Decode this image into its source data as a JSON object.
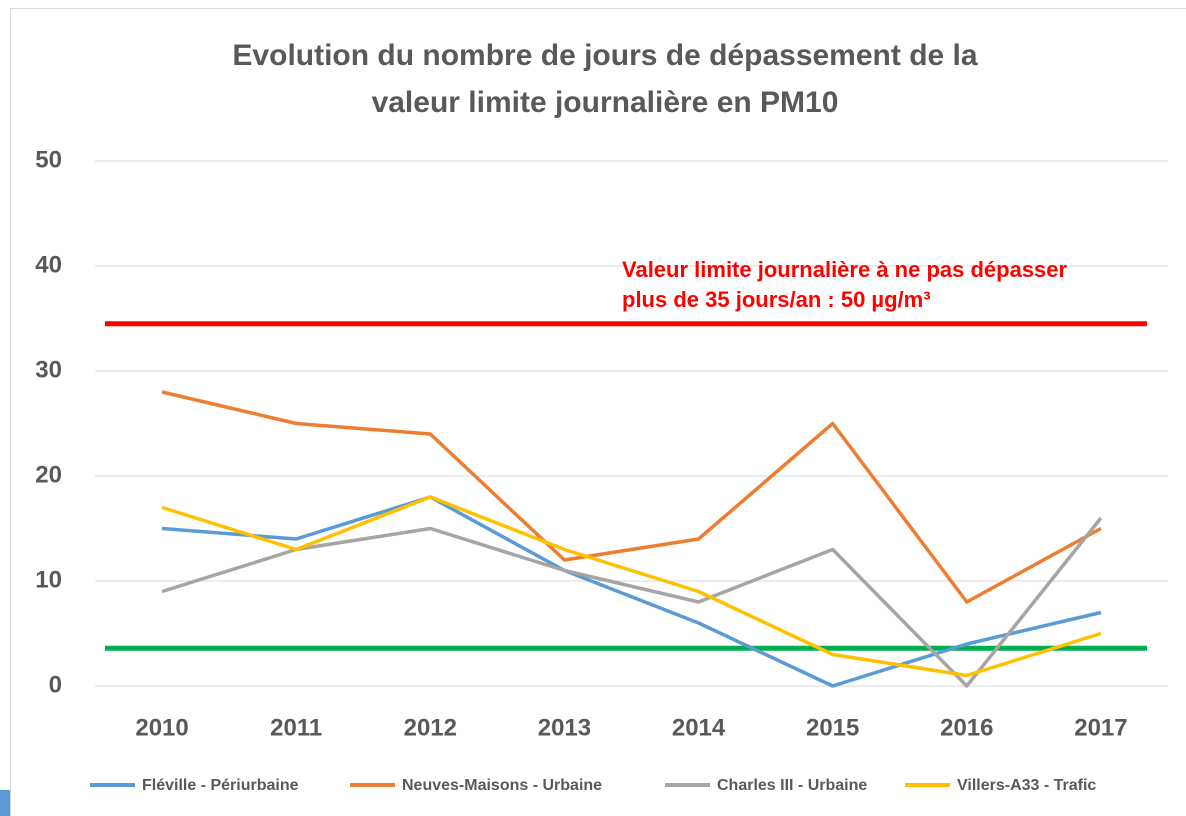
{
  "chart_data": {
    "type": "line",
    "title": [
      "Evolution du nombre de jours de dépassement de la",
      "valeur limite journalière en PM10"
    ],
    "categories": [
      "2010",
      "2011",
      "2012",
      "2013",
      "2014",
      "2015",
      "2016",
      "2017"
    ],
    "series": [
      {
        "name": "Fléville - Périurbaine",
        "color": "#5b9bd5",
        "values": [
          15,
          14,
          18,
          11,
          6,
          0,
          4,
          7
        ]
      },
      {
        "name": "Neuves-Maisons - Urbaine",
        "color": "#ed7d31",
        "values": [
          28,
          25,
          24,
          12,
          14,
          25,
          8,
          15
        ]
      },
      {
        "name": "Charles III - Urbaine",
        "color": "#a5a5a5",
        "values": [
          9,
          13,
          15,
          11,
          8,
          13,
          0,
          16
        ]
      },
      {
        "name": "Villers-A33 - Trafic",
        "color": "#ffc000",
        "values": [
          17,
          13,
          18,
          13,
          9,
          3,
          1,
          5
        ]
      }
    ],
    "reference_lines": [
      {
        "value": 34.5,
        "color": "#ff0000"
      },
      {
        "value": 3.6,
        "color": "#00b050"
      }
    ],
    "annotation": [
      "Valeur limite journalière à ne pas dépasser",
      "plus de 35 jours/an : 50 µg/m³"
    ],
    "annotation_color": "#ff0000",
    "ylim": [
      0,
      50
    ],
    "yticks": [
      0,
      10,
      20,
      30,
      40,
      50
    ],
    "grid": true,
    "legend": "bottom"
  }
}
